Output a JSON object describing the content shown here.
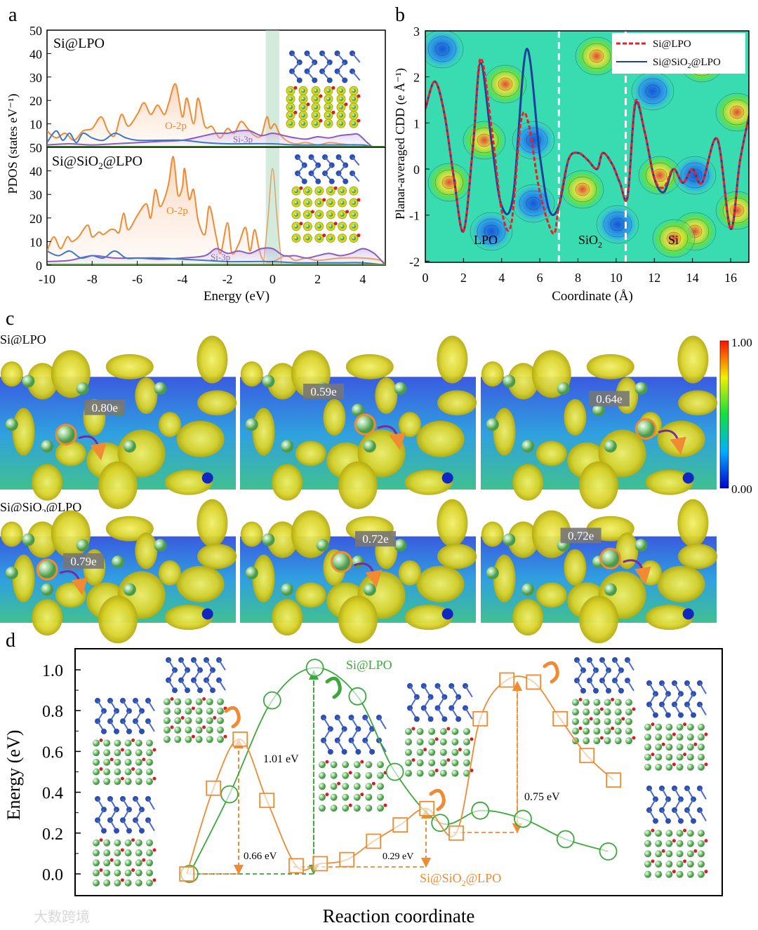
{
  "panel_labels": [
    "a",
    "b",
    "c",
    "d"
  ],
  "watermark": "大数跨境",
  "chart_data": [
    {
      "type": "line",
      "panel": "a",
      "ylabel": "PDOS (states eV⁻¹)",
      "xlabel": "Energy (eV)",
      "xlim": [
        -10,
        5
      ],
      "xticks": [
        "-10",
        "-8",
        "-6",
        "-4",
        "-2",
        "0",
        "2",
        "4"
      ],
      "yticks_top": [
        "50",
        "40",
        "30",
        "20",
        "10"
      ],
      "yticks_bottom": [
        "50",
        "40",
        "30",
        "20",
        "10",
        "0"
      ],
      "highlight_band": [
        -0.3,
        0.3
      ],
      "subplots": [
        {
          "title": "Si@LPO",
          "ylim": [
            0,
            50
          ],
          "labels": {
            "o2p": "O-2p",
            "si3p": "Si-3p"
          },
          "series": [
            {
              "name": "O-2p",
              "color": "#f08a33",
              "x": [
                -10,
                -9.6,
                -9.2,
                -8.8,
                -8.4,
                -8,
                -7.6,
                -7.3,
                -7,
                -6.7,
                -6.4,
                -6,
                -5.7,
                -5.4,
                -5.1,
                -4.8,
                -4.6,
                -4.3,
                -4.0,
                -3.8,
                -3.5,
                -3.3,
                -3,
                -2.7,
                -2.5,
                -2.3,
                -2,
                -1.7,
                -1.4,
                -1.1,
                -0.8,
                -0.5,
                -0.25,
                -0.1,
                0.1,
                0.3,
                0.6,
                1,
                1.5,
                2,
                2.5,
                3,
                3.5,
                4,
                4.3,
                5
              ],
              "y": [
                7,
                4,
                6,
                3,
                7,
                8,
                13,
                7,
                5,
                14,
                9,
                14,
                19,
                14,
                18,
                14,
                19,
                27,
                13,
                21,
                10,
                21,
                9,
                9,
                6,
                4,
                8,
                6,
                11,
                8,
                5,
                5,
                13,
                8,
                10,
                6,
                3,
                1.5,
                2,
                1,
                2,
                1.5,
                1,
                1,
                0,
                0
              ]
            },
            {
              "name": "Si-3p",
              "color": "#8a5cc0",
              "x": [
                -10,
                -9,
                -8,
                -7,
                -6,
                -5,
                -4,
                -3,
                -2.5,
                -2,
                -1.5,
                -1,
                -0.5,
                0,
                0.5,
                1,
                1.5,
                2,
                2.5,
                3,
                3.5,
                3.8,
                4.2,
                4.5,
                5
              ],
              "y": [
                1,
                1.5,
                1,
                1.5,
                2,
                2.5,
                3,
                5,
                6,
                6,
                7,
                7,
                5,
                6,
                5,
                4,
                3.5,
                4.5,
                4,
                5,
                5.5,
                5.5,
                2,
                0,
                0
              ]
            },
            {
              "name": "Blue",
              "color": "#3c78c8",
              "x": [
                -10,
                -9.6,
                -9.3,
                -9,
                -8.7,
                -8.4,
                -8,
                -7.5,
                -7,
                -6.5,
                -6,
                -5,
                -4,
                -3,
                -2,
                -1,
                0,
                1,
                2,
                3,
                4,
                4.5,
                5
              ],
              "y": [
                2,
                7,
                3,
                6,
                2,
                6,
                4,
                3,
                6,
                4,
                3,
                3,
                3,
                2,
                1.5,
                1.5,
                1.5,
                1,
                1,
                1,
                1,
                0,
                0
              ]
            }
          ],
          "inset": "atomic structure with charge density"
        },
        {
          "title": "Si@SiO2@LPO",
          "title_main": "Si@SiO",
          "title_sub": "2",
          "title_tail": "@LPO",
          "ylim": [
            0,
            50
          ],
          "labels": {
            "o2p": "O-2p",
            "si3p": "Si-3p"
          },
          "series": [
            {
              "name": "O-2p",
              "color": "#f08a33",
              "x": [
                -10,
                -9.7,
                -9.4,
                -9.1,
                -8.9,
                -8.6,
                -8.2,
                -8,
                -7.7,
                -7.5,
                -7.2,
                -7,
                -6.8,
                -6.6,
                -6.4,
                -6,
                -5.6,
                -5.4,
                -5.2,
                -5,
                -4.8,
                -4.6,
                -4.4,
                -4.2,
                -4.0,
                -3.9,
                -3.7,
                -3.5,
                -3.3,
                -3,
                -2.8,
                -2.5,
                -2.3,
                -2,
                -1.8,
                -1.5,
                -1.2,
                -1,
                -0.8,
                -0.6,
                -0.4,
                0,
                0.6,
                1,
                1.5,
                2,
                3,
                4,
                4.8,
                5
              ],
              "y": [
                6,
                12,
                7,
                12,
                10,
                12,
                17,
                12,
                14,
                13,
                15,
                15,
                14,
                22,
                15,
                21,
                26,
                20,
                32,
                25,
                28,
                35,
                46,
                30,
                33,
                41,
                28,
                32,
                19,
                13,
                25,
                12,
                5,
                18,
                5,
                9,
                16,
                6,
                15,
                7,
                2,
                1.5,
                4,
                2,
                3,
                2,
                3,
                3,
                2,
                0
              ]
            },
            {
              "name": "Peak",
              "color": "#e0a060",
              "x": [
                -0.4,
                -0.2,
                0,
                0.2,
                0.4
              ],
              "y": [
                0,
                20,
                41,
                20,
                0
              ]
            },
            {
              "name": "Si-3p",
              "color": "#8a5cc0",
              "x": [
                -10,
                -9,
                -8,
                -7,
                -6,
                -5,
                -4,
                -3,
                -2.5,
                -2,
                -1.5,
                -1,
                -0.5,
                0,
                0.5,
                1,
                1.5,
                2,
                2.5,
                3,
                3.5,
                4,
                4.5,
                5
              ],
              "y": [
                1.5,
                2,
                4,
                3,
                3,
                2.5,
                3,
                4,
                7,
                5,
                6,
                5,
                7,
                7,
                4,
                4,
                3,
                4,
                5,
                4,
                5,
                7,
                5,
                0
              ]
            },
            {
              "name": "Blue",
              "color": "#3c78c8",
              "x": [
                -10,
                -9.5,
                -9,
                -8.5,
                -8,
                -7.5,
                -7,
                -6.5,
                -6,
                -5,
                -4,
                -3,
                -2,
                -1,
                0,
                1,
                2,
                3,
                4,
                5
              ],
              "y": [
                6,
                4,
                6,
                3,
                4,
                3,
                6,
                3,
                3,
                3,
                2.5,
                2,
                1.5,
                1.5,
                1.5,
                1,
                1,
                1,
                1,
                0
              ]
            }
          ],
          "inset": "atomic structure with charge density"
        }
      ]
    },
    {
      "type": "line",
      "panel": "b",
      "ylabel": "Planar-averaged CDD (e Å⁻¹)",
      "xlabel": "Coordinate (Å)",
      "xlim": [
        0,
        17.2
      ],
      "ylim": [
        -2,
        3
      ],
      "xticks": [
        "0",
        "2",
        "4",
        "6",
        "8",
        "10",
        "12",
        "14",
        "16"
      ],
      "yticks": [
        "3",
        "2",
        "1",
        "0",
        "-1",
        "-2"
      ],
      "region_labels": {
        "lpo": "LPO",
        "sio2_main": "SiO",
        "sio2_sub": "2",
        "si": "Si"
      },
      "boundaries": [
        7,
        10.5
      ],
      "legend": [
        {
          "label": "Si@LPO",
          "color": "#e8202a",
          "style": "dashed"
        },
        {
          "label_main": "Si@SiO",
          "label_sub": "2",
          "label_tail": "@LPO",
          "label": "Si@SiO2@LPO",
          "color": "#1e3f9a",
          "style": "solid"
        }
      ],
      "series": [
        {
          "name": "Si@SiO2@LPO",
          "color": "#1e3f9a",
          "x": [
            0,
            0.5,
            1,
            1.5,
            2,
            2.5,
            2.9,
            3.5,
            4,
            4.6,
            5.3,
            6,
            6.5,
            7,
            7.5,
            8,
            8.5,
            9,
            9.3,
            9.8,
            10.2,
            10.6,
            11,
            11.5,
            12,
            12.5,
            13,
            13.5,
            14,
            14.5,
            15.3,
            16,
            16.5,
            17.2
          ],
          "y": [
            1.3,
            1.9,
            1.2,
            -0.2,
            -1.35,
            0.5,
            2.3,
            0.5,
            -0.8,
            -0.6,
            2.6,
            0.3,
            -0.9,
            -0.8,
            0.2,
            0.35,
            0.2,
            0,
            0.35,
            0.1,
            -0.3,
            -0.6,
            1.4,
            0.8,
            -0.2,
            -0.5,
            0,
            -0.3,
            0,
            -0.3,
            0.65,
            -1.3,
            0.2,
            1.6
          ]
        },
        {
          "name": "Si@LPO",
          "color": "#e8202a",
          "x": [
            0,
            0.5,
            1,
            1.5,
            2,
            2.5,
            2.9,
            3.5,
            4,
            4.5,
            5,
            5.4,
            6,
            6.7,
            7,
            7.5,
            8,
            8.5,
            9,
            9.3,
            9.8,
            10.2,
            10.6,
            11,
            11.5,
            12,
            12.5,
            13,
            13.5,
            14,
            14.5,
            15.3,
            16,
            16.5,
            17.2
          ],
          "y": [
            1.3,
            1.9,
            1.2,
            -0.2,
            -1.35,
            0.5,
            2.4,
            0.8,
            -0.9,
            -1.2,
            1,
            1.0,
            -0.5,
            -1.4,
            -0.8,
            0.2,
            0.35,
            0.2,
            0,
            0.35,
            0.1,
            -0.3,
            -0.6,
            1.45,
            0.8,
            -0.2,
            -0.4,
            0,
            -0.3,
            0,
            -0.3,
            0.65,
            -1.3,
            0.2,
            1.6
          ]
        }
      ]
    },
    {
      "type": "heatmap",
      "panel": "c",
      "rows": [
        {
          "label": "Si@LPO",
          "frames": [
            "0.80e",
            "0.59e",
            "0.64e"
          ]
        },
        {
          "label_main": "Si@SiO",
          "label_sub": "2",
          "label_tail": "@LPO",
          "label": "Si@SiO2@LPO",
          "frames": [
            "0.79e",
            "0.72e",
            "0.72e"
          ]
        }
      ],
      "colorbar": {
        "max": "1.00",
        "min": "0.00"
      }
    },
    {
      "type": "line",
      "panel": "d",
      "ylabel": "Energy (eV)",
      "xlabel": "Reaction coordinate",
      "ylim": [
        0,
        1.05
      ],
      "yticks": [
        "0.0",
        "0.2",
        "0.4",
        "0.6",
        "0.8",
        "1.0"
      ],
      "series": [
        {
          "name": "Si@LPO",
          "color": "#3aa83a",
          "marker": "circle",
          "x": [
            0,
            1.5,
            3.1,
            4.7,
            6.3,
            7.7,
            9.4,
            10.9,
            12.5,
            14.1,
            15.7
          ],
          "y": [
            0,
            0.39,
            0.85,
            1.01,
            0.87,
            0.5,
            0.25,
            0.31,
            0.27,
            0.17,
            0.11
          ]
        },
        {
          "name": "Si@SiO2@LPO",
          "label_main": "Si@SiO",
          "label_sub": "2",
          "label_tail": "@LPO",
          "color": "#f08a33",
          "marker": "square",
          "x": [
            -0.1,
            0.9,
            1.9,
            2.9,
            4.0,
            4.9,
            5.9,
            6.9,
            7.9,
            8.9,
            10.0,
            10.9,
            11.9,
            12.9,
            13.9,
            14.9,
            15.9
          ],
          "y": [
            0,
            0.42,
            0.66,
            0.36,
            0.04,
            0.05,
            0.07,
            0.16,
            0.24,
            0.32,
            0.2,
            0.76,
            0.95,
            0.94,
            0.76,
            0.58,
            0.46
          ]
        }
      ],
      "annotations": [
        {
          "text": "1.01 eV",
          "color": "#3aa83a"
        },
        {
          "text": "0.66 eV",
          "color": "#f08a33"
        },
        {
          "text": "0.29 eV",
          "color": "#f08a33"
        },
        {
          "text": "0.75 eV",
          "color": "#f08a33"
        }
      ]
    }
  ]
}
